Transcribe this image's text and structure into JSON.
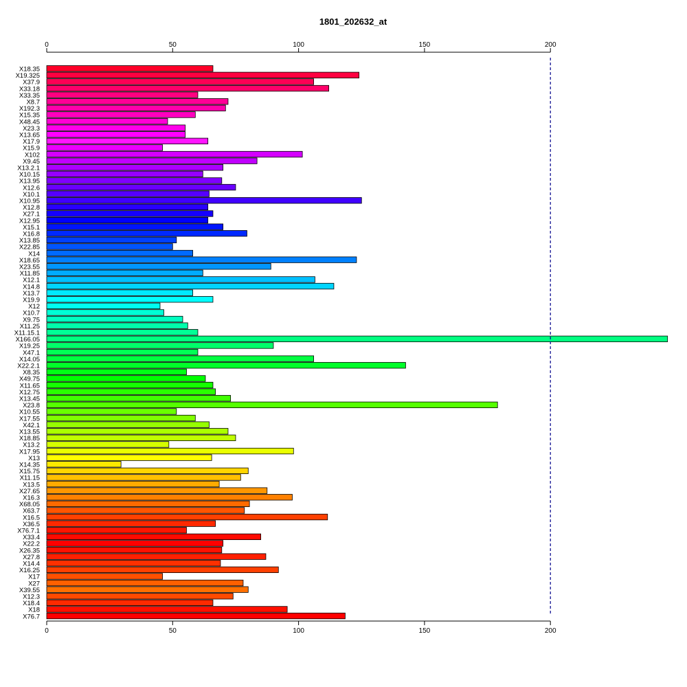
{
  "chart_data": {
    "type": "bar",
    "orientation": "horizontal",
    "title": "1801_202632_at",
    "xlabel": "",
    "ylabel": "",
    "xlim": [
      0,
      246.5
    ],
    "xticks": [
      0,
      50,
      100,
      150,
      200
    ],
    "reference_line": {
      "x": 200,
      "style": "dashed",
      "color": "#00008b"
    },
    "axes_positions": [
      "top",
      "bottom"
    ],
    "grid": false,
    "categories": [
      "X18.35",
      "X19.325",
      "X37.9",
      "X33.18",
      "X33.35",
      "X8.7",
      "X192.3",
      "X15.35",
      "X48.45",
      "X23.3",
      "X13.65",
      "X17.9",
      "X15.9",
      "X102",
      "X9.45",
      "X13.2.1",
      "X10.15",
      "X13.95",
      "X12.6",
      "X10.1",
      "X10.95",
      "X12.8",
      "X27.1",
      "X12.95",
      "X15.1",
      "X16.8",
      "X13.85",
      "X22.85",
      "X14",
      "X18.65",
      "X23.55",
      "X11.85",
      "X12.1",
      "X14.8",
      "X13.7",
      "X19.9",
      "X12",
      "X10.7",
      "X9.75",
      "X11.25",
      "X11.15.1",
      "X166.05",
      "X19.25",
      "X47.1",
      "X14.05",
      "X22.2.1",
      "X8.35",
      "X49.75",
      "X11.65",
      "X12.75",
      "X13.45",
      "X23.8",
      "X10.55",
      "X17.55",
      "X42.1",
      "X13.55",
      "X18.85",
      "X13.2",
      "X17.95",
      "X13",
      "X14.35",
      "X15.75",
      "X11.15",
      "X13.5",
      "X27.65",
      "X16.3",
      "X68.05",
      "X63.7",
      "X16.5",
      "X36.5",
      "X76.7.1",
      "X33.4",
      "X22.2",
      "X26.35",
      "X27.8",
      "X14.4",
      "X16.25",
      "X17",
      "X27",
      "X39.55",
      "X12.3",
      "X18.4",
      "X18",
      "X76.7"
    ],
    "values": [
      66,
      124,
      106,
      112,
      60,
      72,
      71,
      59,
      48,
      55,
      55,
      64,
      46,
      101.5,
      83.5,
      70,
      62,
      69.5,
      75,
      64.5,
      125,
      64,
      66,
      64,
      70,
      79.5,
      51.5,
      50,
      58,
      123,
      89,
      62,
      106.5,
      114,
      58,
      66,
      45,
      46.5,
      54,
      56,
      60,
      246.5,
      90,
      60,
      106,
      142.5,
      55.5,
      63,
      66,
      67,
      73,
      179,
      51.5,
      59,
      64.5,
      72,
      75,
      48.5,
      98,
      65.5,
      29.5,
      80,
      77,
      68.5,
      87.5,
      97.5,
      80.5,
      78.5,
      111.5,
      67,
      55.5,
      85,
      70,
      69.5,
      87,
      69,
      92,
      46,
      78,
      80,
      74,
      66,
      95.5,
      118.5
    ],
    "colors": [
      "#ff0029",
      "#ff0040",
      "#ff0055",
      "#ff006a",
      "#ff0080",
      "#ff0096",
      "#ff00ab",
      "#ff00c0",
      "#ff00d5",
      "#ff00ea",
      "#ff00ff",
      "#ff15ff",
      "#ea00ff",
      "#d500ff",
      "#c000ff",
      "#ab00ff",
      "#9600ff",
      "#8000ff",
      "#6a00ff",
      "#5500ff",
      "#4000ff",
      "#2900ff",
      "#1500ff",
      "#0000ff",
      "#0015ff",
      "#0029ff",
      "#0040ff",
      "#0055ff",
      "#006aff",
      "#0080ff",
      "#0096ff",
      "#00abff",
      "#00c0ff",
      "#00d5ff",
      "#00eaff",
      "#00ffff",
      "#00fff0",
      "#00ffd5",
      "#00ffc0",
      "#00ffab",
      "#00ff96",
      "#00ff80",
      "#00ff6a",
      "#00ff55",
      "#00ff40",
      "#00ff29",
      "#00ff15",
      "#00ff00",
      "#15ff00",
      "#29ff00",
      "#40ff00",
      "#55ff00",
      "#6aff00",
      "#80ff00",
      "#96ff00",
      "#abff00",
      "#c0ff00",
      "#d5ff00",
      "#eaff00",
      "#ffff00",
      "#ffea00",
      "#ffd500",
      "#ffc000",
      "#ffab00",
      "#ff9600",
      "#ff8000",
      "#ff6a00",
      "#ff5500",
      "#ff4000",
      "#ff2900",
      "#ff1500",
      "#ff0a00",
      "#ff0000",
      "#ff1000",
      "#ff2000",
      "#ff3000",
      "#ff4000",
      "#ff5000",
      "#ff6000",
      "#ff7000",
      "#ff4a00",
      "#ff2a00",
      "#ff1000",
      "#ff0000"
    ]
  }
}
